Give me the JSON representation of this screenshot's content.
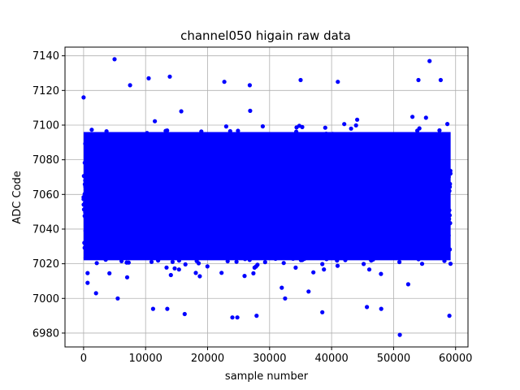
{
  "chart_data": {
    "type": "scatter",
    "title": "channel050 higain raw data",
    "xlabel": "sample number",
    "ylabel": "ADC Code",
    "xlim": [
      -3000,
      62000
    ],
    "ylim": [
      6972,
      7145
    ],
    "xticks": [
      0,
      10000,
      20000,
      30000,
      40000,
      50000,
      60000
    ],
    "yticks": [
      6980,
      7000,
      7020,
      7040,
      7060,
      7080,
      7100,
      7120,
      7140
    ],
    "grid": true,
    "marker_color": "#0000ff",
    "series": [
      {
        "x_range": [
          0,
          59200
        ],
        "dense_band": [
          7018,
          7100
        ],
        "outliers": [
          [
            5000,
            7138
          ],
          [
            55800,
            7137
          ],
          [
            13900,
            7128
          ],
          [
            10500,
            7127
          ],
          [
            35000,
            7126
          ],
          [
            54000,
            7126
          ],
          [
            57600,
            7126
          ],
          [
            41000,
            7125
          ],
          [
            22700,
            7125
          ],
          [
            26800,
            7123
          ],
          [
            7500,
            7123
          ],
          [
            0,
            7116
          ],
          [
            51000,
            6979
          ],
          [
            59000,
            6990
          ],
          [
            38500,
            6992
          ],
          [
            48000,
            6994
          ],
          [
            24000,
            6989
          ],
          [
            24800,
            6989
          ],
          [
            27900,
            6990
          ],
          [
            16300,
            6991
          ],
          [
            13500,
            6994
          ],
          [
            11200,
            6994
          ],
          [
            45700,
            6995
          ],
          [
            32500,
            7000
          ],
          [
            5500,
            7000
          ],
          [
            2000,
            7003
          ]
        ]
      }
    ]
  }
}
